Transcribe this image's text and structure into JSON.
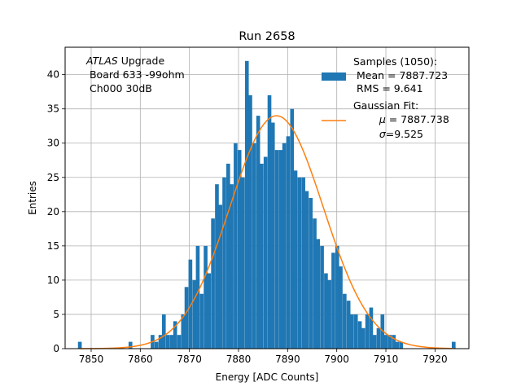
{
  "chart_data": {
    "type": "bar",
    "title": "Run 2658",
    "xlabel": "Energy [ADC Counts]",
    "ylabel": "Entries",
    "xlim": [
      7844.7,
      7926.9
    ],
    "ylim": [
      0,
      44
    ],
    "grid": true,
    "x_ticks": [
      7850,
      7860,
      7870,
      7880,
      7890,
      7900,
      7910,
      7920
    ],
    "y_ticks": [
      0,
      5,
      10,
      15,
      20,
      25,
      30,
      35,
      40
    ],
    "annotation": {
      "italic": "ATLAS",
      "rest": " Upgrade",
      "line2": " Board 633 -99ohm",
      "line3": " Ch000 30dB"
    },
    "legend": {
      "placement": "top-right",
      "hist_label_1": "Samples (1050):",
      "hist_label_2": " Mean = 7887.723",
      "hist_label_3": " RMS = 9.641",
      "fit_label_1": "Gaussian Fit:",
      "fit_label_2_symbol": "μ",
      "fit_label_2_rest": " = 7887.738",
      "fit_label_3_symbol": "σ",
      "fit_label_3_rest": "=9.525"
    },
    "histogram": {
      "name": "Samples (1050)",
      "color": "#1f77b4",
      "bin_width": 0.767,
      "bin_centers": [
        7847.7,
        7858.0,
        7862.5,
        7863.3,
        7864.1,
        7864.8,
        7865.6,
        7866.4,
        7867.1,
        7867.9,
        7868.7,
        7869.4,
        7870.2,
        7871.0,
        7871.7,
        7872.5,
        7873.3,
        7874.0,
        7874.8,
        7875.6,
        7876.3,
        7877.1,
        7877.9,
        7878.6,
        7879.4,
        7880.2,
        7880.9,
        7881.7,
        7882.4,
        7883.2,
        7884.0,
        7884.7,
        7885.5,
        7886.3,
        7887.0,
        7887.8,
        7888.6,
        7889.3,
        7890.1,
        7890.9,
        7891.6,
        7892.4,
        7893.2,
        7893.9,
        7894.7,
        7895.5,
        7896.2,
        7897.0,
        7897.8,
        7898.5,
        7899.3,
        7900.1,
        7900.8,
        7901.6,
        7902.4,
        7903.1,
        7903.9,
        7904.7,
        7905.4,
        7906.2,
        7907.0,
        7907.7,
        7908.5,
        7909.3,
        7910.0,
        7910.8,
        7911.6,
        7912.3,
        7913.1,
        7923.8
      ],
      "counts": [
        1,
        1,
        2,
        1,
        2,
        5,
        2,
        2,
        4,
        2,
        5,
        9,
        13,
        10,
        15,
        8,
        15,
        11,
        19,
        24,
        21,
        25,
        27,
        24,
        30,
        29,
        25,
        42,
        37,
        30,
        34,
        27,
        28,
        37,
        33,
        29,
        29,
        30,
        31,
        35,
        26,
        25,
        25,
        23,
        22,
        19,
        16,
        15,
        11,
        10,
        14,
        15,
        12,
        8,
        7,
        5,
        5,
        4,
        3,
        5,
        6,
        2,
        3,
        5,
        2,
        2,
        2,
        1,
        1,
        1
      ]
    },
    "fit": {
      "name": "Gaussian Fit",
      "color": "#ff7f0e",
      "mu": 7887.738,
      "sigma": 9.525,
      "peak": 34.0
    }
  }
}
